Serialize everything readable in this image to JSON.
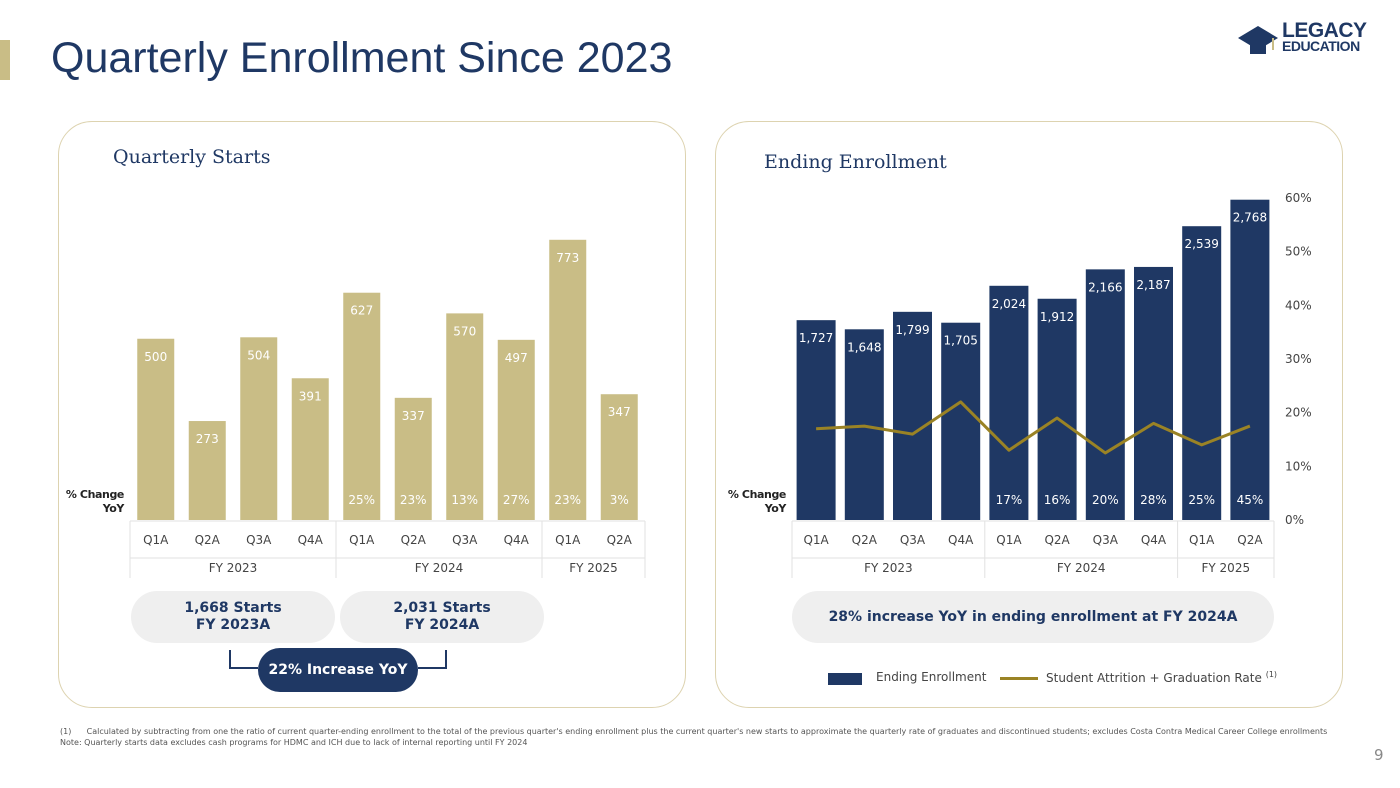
{
  "page": {
    "title": "Quarterly Enrollment Since 2023",
    "page_number": "9",
    "logo": {
      "line1": "LEGACY",
      "line2": "EDUCATION"
    }
  },
  "colors": {
    "gold": "#c9bd86",
    "navy": "#1f3864",
    "line": "#9a8325"
  },
  "left_chart": {
    "summary_2023": {
      "line1": "1,668 Starts",
      "line2": "FY 2023A"
    },
    "summary_2024": {
      "line1": "2,031 Starts",
      "line2": "FY 2024A"
    },
    "increase_label": "22% Increase YoY"
  },
  "right_chart": {
    "summary": "28% increase YoY in ending enrollment at FY 2024A",
    "legend": {
      "bars": "Ending Enrollment",
      "line": "Student Attrition + Graduation Rate",
      "line_sup": "(1)"
    }
  },
  "footnotes": {
    "note1_marker": "(1)",
    "note1": "Calculated by subtracting from one the ratio of current quarter-ending enrollment to the total of the previous quarter's ending enrollment plus the current quarter's new starts to approximate the quarterly rate of graduates and discontinued students; excludes Costa Contra Medical Career College enrollments",
    "note2": "Note: Quarterly starts data excludes cash programs for HDMC and ICH due to lack of internal reporting until FY 2024"
  },
  "chart_data": [
    {
      "type": "bar",
      "title": "Quarterly Starts",
      "categories": [
        "Q1A",
        "Q2A",
        "Q3A",
        "Q4A",
        "Q1A",
        "Q2A",
        "Q3A",
        "Q4A",
        "Q1A",
        "Q2A"
      ],
      "groups": [
        {
          "label": "FY 2023",
          "count": 4
        },
        {
          "label": "FY 2024",
          "count": 4
        },
        {
          "label": "FY 2025",
          "count": 2
        }
      ],
      "values": [
        500,
        273,
        504,
        391,
        627,
        337,
        570,
        497,
        773,
        347
      ],
      "value_labels": [
        "500",
        "273",
        "504",
        "391",
        "627",
        "337",
        "570",
        "497",
        "773",
        "347"
      ],
      "pct_change_label": "% Change YoY",
      "pct_change": [
        "",
        "",
        "",
        "",
        "25%",
        "23%",
        "13%",
        "27%",
        "23%",
        "3%"
      ],
      "ylim": [
        0,
        800
      ],
      "color": "#c9bd86"
    },
    {
      "type": "bar",
      "title": "Ending Enrollment",
      "categories": [
        "Q1A",
        "Q2A",
        "Q3A",
        "Q4A",
        "Q1A",
        "Q2A",
        "Q3A",
        "Q4A",
        "Q1A",
        "Q2A"
      ],
      "groups": [
        {
          "label": "FY 2023",
          "count": 4
        },
        {
          "label": "FY 2024",
          "count": 4
        },
        {
          "label": "FY 2025",
          "count": 2
        }
      ],
      "series": [
        {
          "name": "Ending Enrollment",
          "type": "bar",
          "values": [
            1727,
            1648,
            1799,
            1705,
            2024,
            1912,
            2166,
            2187,
            2539,
            2768
          ],
          "value_labels": [
            "1,727",
            "1,648",
            "1,799",
            "1,705",
            "2,024",
            "1,912",
            "2,166",
            "2,187",
            "2,539",
            "2,768"
          ]
        },
        {
          "name": "Student Attrition + Graduation Rate",
          "type": "line",
          "axis": "right",
          "values": [
            17,
            17.5,
            16,
            22,
            13,
            19,
            12.5,
            18,
            14,
            17.5
          ]
        }
      ],
      "pct_change_label": "% Change YoY",
      "pct_change": [
        "",
        "",
        "",
        "",
        "17%",
        "16%",
        "20%",
        "28%",
        "25%",
        "45%"
      ],
      "ylim": [
        0,
        2800
      ],
      "y2lim": [
        0,
        60
      ],
      "y2ticks": [
        "0%",
        "10%",
        "20%",
        "30%",
        "40%",
        "50%",
        "60%"
      ],
      "color": "#1f3864"
    }
  ]
}
